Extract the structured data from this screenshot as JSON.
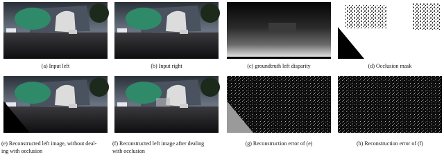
{
  "panels": [
    {
      "caption": [
        "(a) Input left"
      ]
    },
    {
      "caption": [
        "(b) Input right"
      ]
    },
    {
      "caption": [
        "(c) groundtruth left disparity"
      ]
    },
    {
      "caption": [
        "(d) Occlusion mask"
      ]
    },
    {
      "caption": [
        "(e) Reconstructed left image, without deal-",
        "ing with occlusion"
      ]
    },
    {
      "caption": [
        "(f) Reconstructed left image after dealing",
        "with occlusion"
      ]
    },
    {
      "caption": [
        "(g) Reconstruction error of (e)"
      ]
    },
    {
      "caption": [
        "(h) Reconstruction error of (f)"
      ]
    }
  ]
}
